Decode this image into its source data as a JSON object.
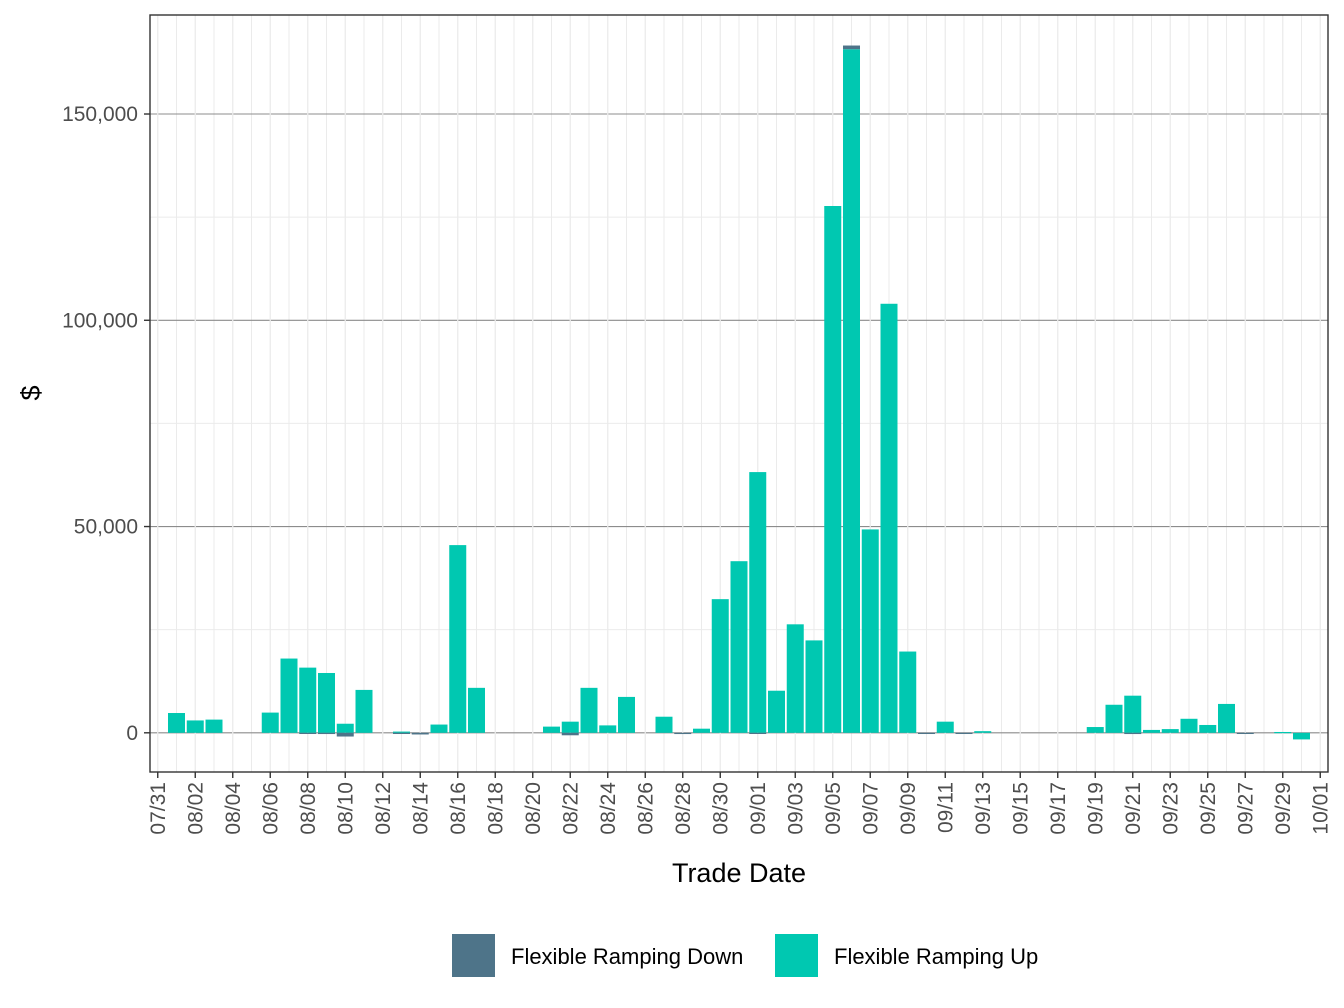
{
  "chart_data": {
    "type": "bar",
    "stacked": true,
    "title": "",
    "xlabel": "Trade Date",
    "ylabel": "$",
    "ylim": [
      -9500,
      174000
    ],
    "y_ticks": [
      0,
      50000,
      100000,
      150000
    ],
    "y_tick_labels": [
      "0",
      "50,000",
      "100,000",
      "150,000"
    ],
    "x_tick_labels": [
      "07/31",
      "08/02",
      "08/04",
      "08/06",
      "08/08",
      "08/10",
      "08/12",
      "08/14",
      "08/16",
      "08/18",
      "08/20",
      "08/22",
      "08/24",
      "08/26",
      "08/28",
      "08/30",
      "09/01",
      "09/03",
      "09/05",
      "09/07",
      "09/09",
      "09/11",
      "09/13",
      "09/15",
      "09/17",
      "09/19",
      "09/21",
      "09/23",
      "09/25",
      "09/27",
      "09/29",
      "10/01"
    ],
    "grid": true,
    "legend_position": "bottom",
    "categories": [
      "08/01",
      "08/02",
      "08/03",
      "08/04",
      "08/05",
      "08/06",
      "08/07",
      "08/08",
      "08/09",
      "08/10",
      "08/11",
      "08/12",
      "08/13",
      "08/14",
      "08/15",
      "08/16",
      "08/17",
      "08/18",
      "08/19",
      "08/20",
      "08/21",
      "08/22",
      "08/23",
      "08/24",
      "08/25",
      "08/26",
      "08/27",
      "08/28",
      "08/29",
      "08/30",
      "08/31",
      "09/01",
      "09/02",
      "09/03",
      "09/04",
      "09/05",
      "09/06",
      "09/07",
      "09/08",
      "09/09",
      "09/10",
      "09/11",
      "09/12",
      "09/13",
      "09/14",
      "09/15",
      "09/16",
      "09/17",
      "09/18",
      "09/19",
      "09/20",
      "09/21",
      "09/22",
      "09/23",
      "09/24",
      "09/25",
      "09/26",
      "09/27",
      "09/28",
      "09/29",
      "09/30"
    ],
    "series": [
      {
        "name": "Flexible Ramping Down",
        "color": "#4e7489",
        "values": [
          0,
          0,
          0,
          0,
          0,
          0,
          0,
          -200,
          -300,
          -900,
          0,
          0,
          -100,
          -400,
          0,
          0,
          0,
          0,
          0,
          0,
          0,
          -600,
          0,
          0,
          0,
          0,
          0,
          -300,
          0,
          0,
          0,
          -200,
          0,
          0,
          0,
          0,
          900,
          0,
          0,
          0,
          -200,
          0,
          -100,
          0,
          0,
          0,
          0,
          0,
          0,
          0,
          0,
          -300,
          0,
          0,
          0,
          0,
          0,
          -200,
          0,
          0,
          0
        ]
      },
      {
        "name": "Flexible Ramping Up",
        "color": "#00c8b1",
        "values": [
          4800,
          3000,
          3200,
          0,
          0,
          4900,
          18000,
          15800,
          14500,
          2200,
          10400,
          0,
          300,
          0,
          2000,
          45500,
          10900,
          0,
          0,
          0,
          1500,
          2700,
          10900,
          1800,
          8700,
          0,
          3900,
          0,
          1000,
          32400,
          41600,
          63200,
          10200,
          26300,
          22400,
          127700,
          165700,
          49300,
          104000,
          19700,
          0,
          2700,
          0,
          400,
          0,
          0,
          0,
          0,
          0,
          1400,
          6800,
          9000,
          700,
          900,
          3400,
          1900,
          7000,
          0,
          0,
          200,
          -1600
        ]
      }
    ]
  }
}
